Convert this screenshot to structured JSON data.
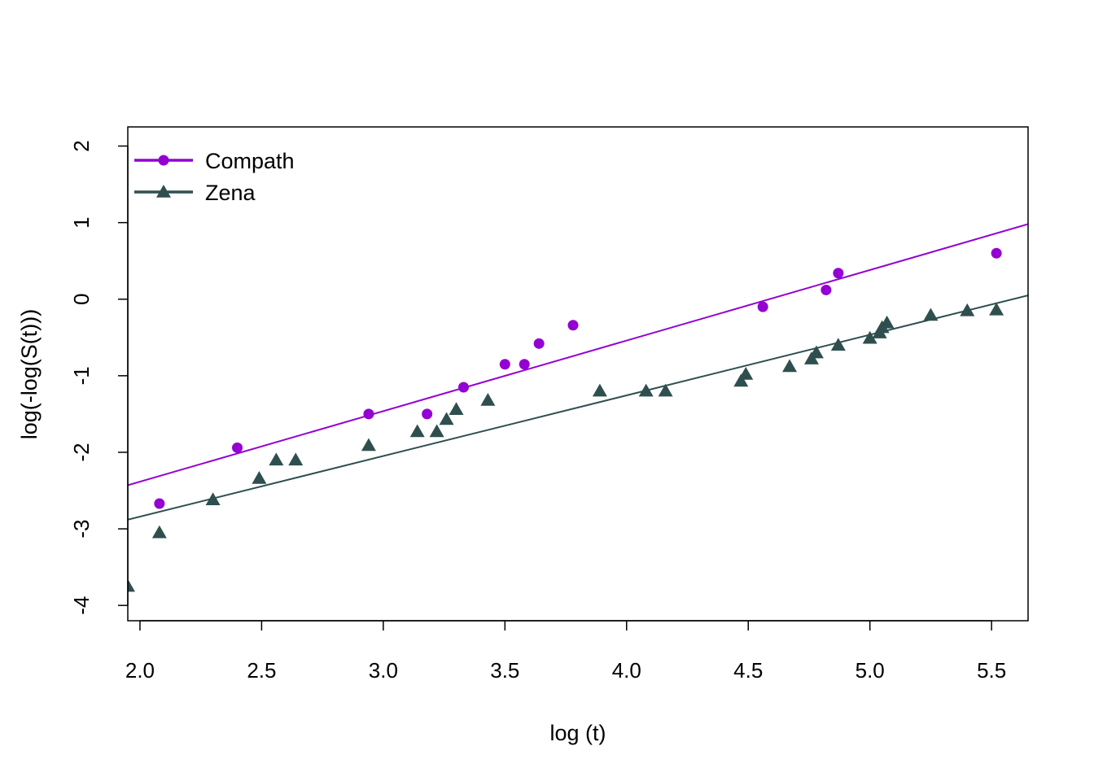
{
  "chart_data": {
    "type": "scatter",
    "xlabel": "log (t)",
    "ylabel": "log(-log(S(t)))",
    "xlim": [
      1.95,
      5.65
    ],
    "ylim": [
      -4.2,
      2.25
    ],
    "x_ticks": [
      "2.0",
      "2.5",
      "3.0",
      "3.5",
      "4.0",
      "4.5",
      "5.0",
      "5.5"
    ],
    "x_tick_values": [
      2.0,
      2.5,
      3.0,
      3.5,
      4.0,
      4.5,
      5.0,
      5.5
    ],
    "y_ticks": [
      "-4",
      "-3",
      "-2",
      "-1",
      "0",
      "1",
      "2"
    ],
    "y_tick_values": [
      -4,
      -3,
      -2,
      -1,
      0,
      1,
      2
    ],
    "grid": false,
    "legend_position": "top-left",
    "series": [
      {
        "name": "Compath",
        "color": "#9400D3",
        "marker": "circle",
        "points": [
          [
            2.08,
            -2.67
          ],
          [
            2.4,
            -1.94
          ],
          [
            2.94,
            -1.5
          ],
          [
            3.18,
            -1.5
          ],
          [
            3.33,
            -1.15
          ],
          [
            3.5,
            -0.85
          ],
          [
            3.58,
            -0.85
          ],
          [
            3.64,
            -0.58
          ],
          [
            3.78,
            -0.34
          ],
          [
            4.56,
            -0.1
          ],
          [
            4.82,
            0.12
          ],
          [
            4.87,
            0.34
          ],
          [
            5.52,
            0.6
          ]
        ],
        "fit_line": [
          [
            1.95,
            -2.43
          ],
          [
            5.65,
            0.98
          ]
        ]
      },
      {
        "name": "Zena",
        "color": "#2F4F4F",
        "marker": "triangle",
        "points": [
          [
            1.95,
            -3.75
          ],
          [
            2.08,
            -3.05
          ],
          [
            2.3,
            -2.62
          ],
          [
            2.49,
            -2.34
          ],
          [
            2.56,
            -2.1
          ],
          [
            2.64,
            -2.1
          ],
          [
            2.94,
            -1.91
          ],
          [
            3.14,
            -1.73
          ],
          [
            3.22,
            -1.73
          ],
          [
            3.26,
            -1.57
          ],
          [
            3.3,
            -1.44
          ],
          [
            3.43,
            -1.32
          ],
          [
            3.89,
            -1.2
          ],
          [
            4.08,
            -1.2
          ],
          [
            4.16,
            -1.2
          ],
          [
            4.47,
            -1.07
          ],
          [
            4.49,
            -0.98
          ],
          [
            4.67,
            -0.88
          ],
          [
            4.76,
            -0.78
          ],
          [
            4.78,
            -0.7
          ],
          [
            4.87,
            -0.6
          ],
          [
            5.0,
            -0.51
          ],
          [
            5.04,
            -0.44
          ],
          [
            5.05,
            -0.37
          ],
          [
            5.07,
            -0.31
          ],
          [
            5.25,
            -0.21
          ],
          [
            5.4,
            -0.15
          ],
          [
            5.52,
            -0.14
          ]
        ],
        "fit_line": [
          [
            1.95,
            -2.88
          ],
          [
            5.65,
            0.05
          ]
        ]
      }
    ]
  }
}
